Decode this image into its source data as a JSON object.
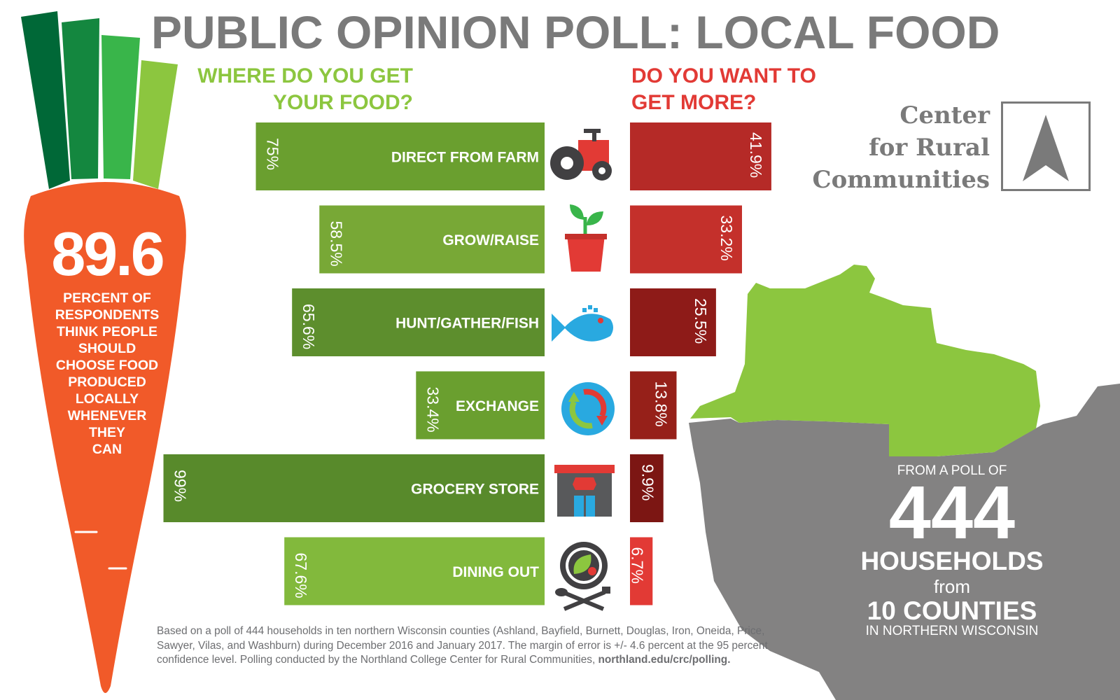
{
  "title": "PUBLIC OPINION POLL: LOCAL FOOD",
  "question_left": {
    "line1": "WHERE DO YOU GET",
    "line2": "YOUR FOOD?"
  },
  "question_right": {
    "line1": "DO YOU WANT TO",
    "line2": "GET MORE?"
  },
  "carrot": {
    "number": "89.6",
    "lines": [
      "PERCENT OF",
      "RESPONDENTS",
      "THINK PEOPLE",
      "SHOULD",
      "CHOOSE FOOD",
      "PRODUCED",
      "LOCALLY",
      "WHENEVER",
      "THEY",
      "CAN"
    ]
  },
  "logo": {
    "line1": "Center",
    "line2": "for Rural",
    "line3": "Communities"
  },
  "poll": {
    "pre": "FROM A POLL OF",
    "number": "444",
    "households": "HOUSEHOLDS",
    "from": "from",
    "counties": "10 COUNTIES",
    "region": "IN NORTHERN WISCONSIN"
  },
  "footnote": {
    "text": "Based on a poll of 444 households in ten northern Wisconsin counties (Ashland, Bayfield, Burnett, Douglas, Iron, Oneida, Price, Sawyer, Vilas, and Washburn) during December 2016 and January 2017. The margin of error is +/- 4.6 percent at the 95 percent confidence level. Polling conducted by the Northland College Center for Rural Communities, ",
    "link": "northland.edu/crc/polling."
  },
  "colors": {
    "green_bars": [
      "#6a9f2f",
      "#78a836",
      "#5d8e2d",
      "#6a9f2f",
      "#588a2b",
      "#82b93c"
    ],
    "red_bars": [
      "#b52a27",
      "#c4302b",
      "#8e1b18",
      "#962019",
      "#7c1613",
      "#e23a35"
    ],
    "carrot": "#f15a29",
    "leaves": [
      "#006837",
      "#14873f",
      "#39b54a",
      "#8cc63f"
    ],
    "map_green": "#8cc63f",
    "map_gray": "#838282"
  },
  "chart_data": {
    "type": "bar",
    "categories": [
      "DIRECT FROM FARM",
      "GROW/RAISE",
      "HUNT/GATHER/FISH",
      "EXCHANGE",
      "GROCERY STORE",
      "DINING OUT"
    ],
    "icons": [
      "tractor-icon",
      "plant-icon",
      "fish-icon",
      "exchange-icon",
      "store-icon",
      "dining-icon"
    ],
    "series": [
      {
        "name": "WHERE DO YOU GET YOUR FOOD?",
        "values": [
          75,
          58.5,
          65.6,
          33.4,
          99,
          67.6
        ],
        "labels": [
          "75%",
          "58.5%",
          "65.6%",
          "33.4%",
          "99%",
          "67.6%"
        ]
      },
      {
        "name": "DO YOU WANT TO GET MORE?",
        "values": [
          41.9,
          33.2,
          25.5,
          13.8,
          9.9,
          6.7
        ],
        "labels": [
          "41.9%",
          "33.2%",
          "25.5%",
          "13.8%",
          "9.9%",
          "6.7%"
        ]
      }
    ],
    "xlim": [
      0,
      100
    ]
  }
}
